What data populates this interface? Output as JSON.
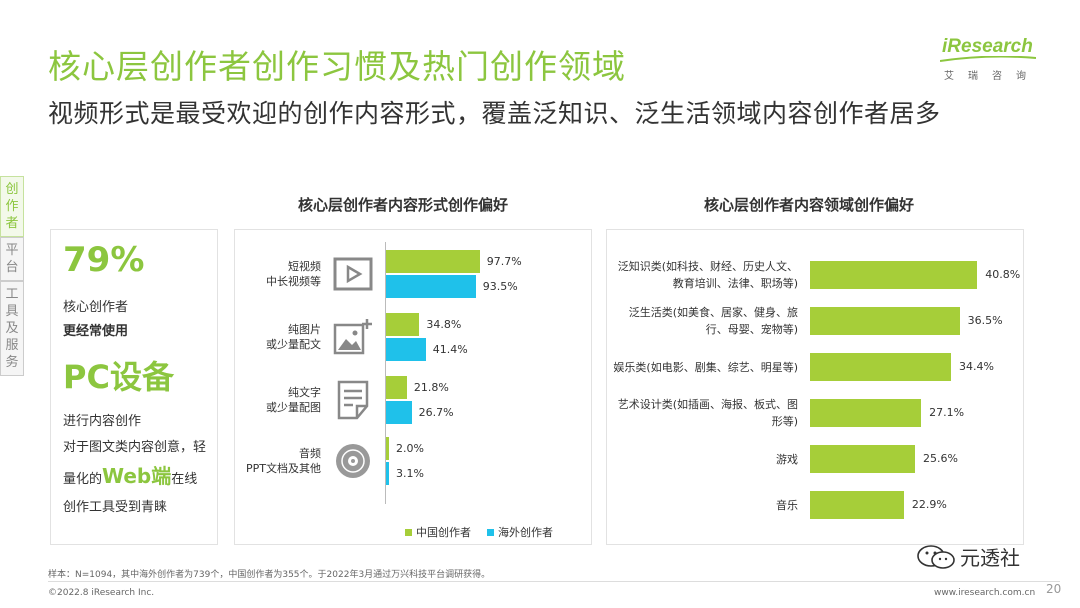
{
  "header": {
    "title": "核心层创作者创作习惯及热门创作领域",
    "subtitle": "视频形式是最受欢迎的创作内容形式，覆盖泛知识、泛生活领域内容创作者居多"
  },
  "logo": {
    "text": "iResearch",
    "sub": "艾瑞咨询"
  },
  "side_nav": {
    "items": [
      {
        "label": "创作者",
        "active": true
      },
      {
        "label": "平台",
        "active": false
      },
      {
        "label": "工具及服务",
        "active": false
      }
    ]
  },
  "highlight": {
    "pct": "79%",
    "line1": "核心创作者",
    "line2": "更经常使用",
    "device": "PC设备",
    "line3": "进行内容创作",
    "line4": "对于图文类内容创意，轻",
    "line5_pre": "量化的",
    "line5_web": "Web端",
    "line5_post": "在线",
    "line6": "创作工具受到青睐"
  },
  "chart_data": [
    {
      "type": "bar",
      "orientation": "horizontal",
      "title": "核心层创作者内容形式创作偏好",
      "categories": [
        [
          "短视频",
          "中长视频等"
        ],
        [
          "纯图片",
          "或少量配文"
        ],
        [
          "纯文字",
          "或少量配图"
        ],
        [
          "音频",
          "PPT文档及其他"
        ]
      ],
      "icons": [
        "video-icon",
        "image-icon",
        "document-icon",
        "audio-disc-icon"
      ],
      "series": [
        {
          "name": "中国创作者",
          "values": [
            97.7,
            34.8,
            21.8,
            2.0
          ],
          "labels": [
            "97.7%",
            "34.8%",
            "21.8%",
            "2.0%"
          ],
          "color": "#a6ce39"
        },
        {
          "name": "海外创作者",
          "values": [
            93.5,
            41.4,
            26.7,
            3.1
          ],
          "labels": [
            "93.5%",
            "41.4%",
            "26.7%",
            "3.1%"
          ],
          "color": "#1fc1ea"
        }
      ],
      "xlim": [
        0,
        100
      ],
      "legend": "bottom"
    },
    {
      "type": "bar",
      "orientation": "horizontal",
      "title": "核心层创作者内容领域创作偏好",
      "categories": [
        [
          "泛知识类(如科技、财经、历史人文、",
          "教育培训、法律、职场等)"
        ],
        [
          "泛生活类(如美食、居家、健身、旅",
          "行、母婴、宠物等)"
        ],
        [
          "娱乐类(如电影、剧集、综艺、明星等)"
        ],
        [
          "艺术设计类(如插画、海报、板式、图",
          "形等)"
        ],
        [
          "游戏"
        ],
        [
          "音乐"
        ]
      ],
      "values": [
        40.8,
        36.5,
        34.4,
        27.1,
        25.6,
        22.9
      ],
      "labels": [
        "40.8%",
        "36.5%",
        "34.4%",
        "27.1%",
        "25.6%",
        "22.9%"
      ],
      "color": "#a6ce39",
      "xlim": [
        0,
        50
      ]
    }
  ],
  "footer": {
    "note": "样本：N=1094，其中海外创作者为739个，中国创作者为355个。于2022年3月通过万兴科技平台调研获得。",
    "copyright": "©2022.8 iResearch Inc.",
    "site": "www.iresearch.com.cn",
    "page": "20",
    "watermark": "元透社"
  }
}
